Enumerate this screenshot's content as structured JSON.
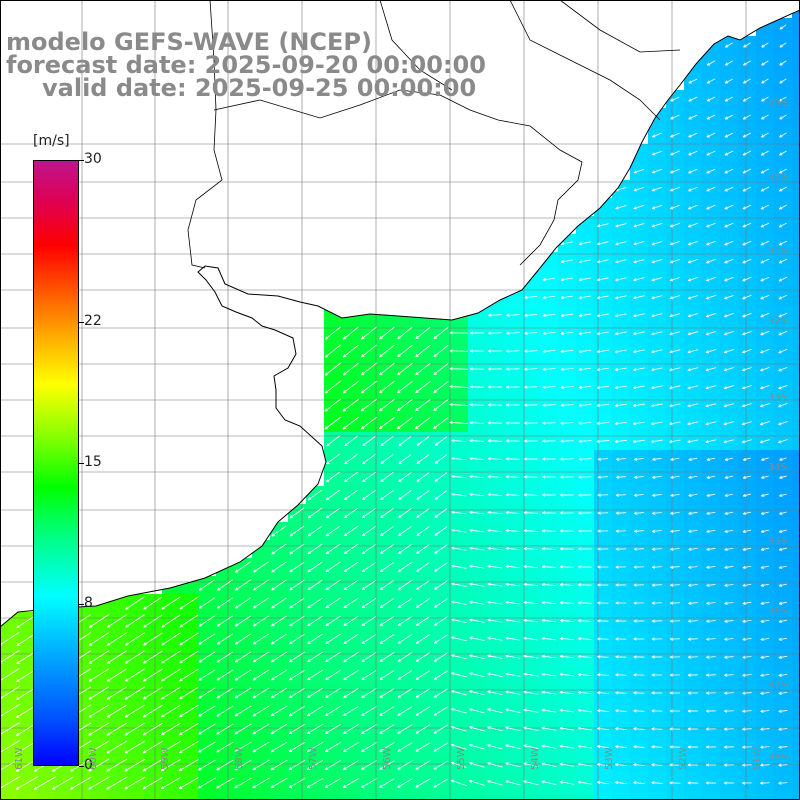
{
  "title": {
    "line1": "modelo GEFS-WAVE (NCEP)",
    "line2": "forecast date: 2025-09-20 00:00:00",
    "line3": "valid date: 2025-09-25 00:00:00"
  },
  "colorbar": {
    "unit": "[m/s]",
    "ticks": [
      "30",
      "22",
      "15",
      "8",
      "0"
    ],
    "tick_values": [
      30,
      22,
      15,
      8,
      0
    ],
    "range": [
      0,
      30
    ]
  },
  "map": {
    "variable": "wind speed",
    "units": "m/s",
    "lon_labels": [
      "61W",
      "60W",
      "59W",
      "58W",
      "57W",
      "56W",
      "55W",
      "54W",
      "53W",
      "52W",
      "51W"
    ],
    "lat_labels": [
      "29S",
      "30S",
      "31S",
      "32S",
      "33S",
      "34S",
      "35S",
      "36S",
      "37S",
      "38S"
    ],
    "land_color": "#ffffff",
    "coast_color": "#000000",
    "grid_color": "#666666",
    "arrow_color": "#ffffff"
  }
}
